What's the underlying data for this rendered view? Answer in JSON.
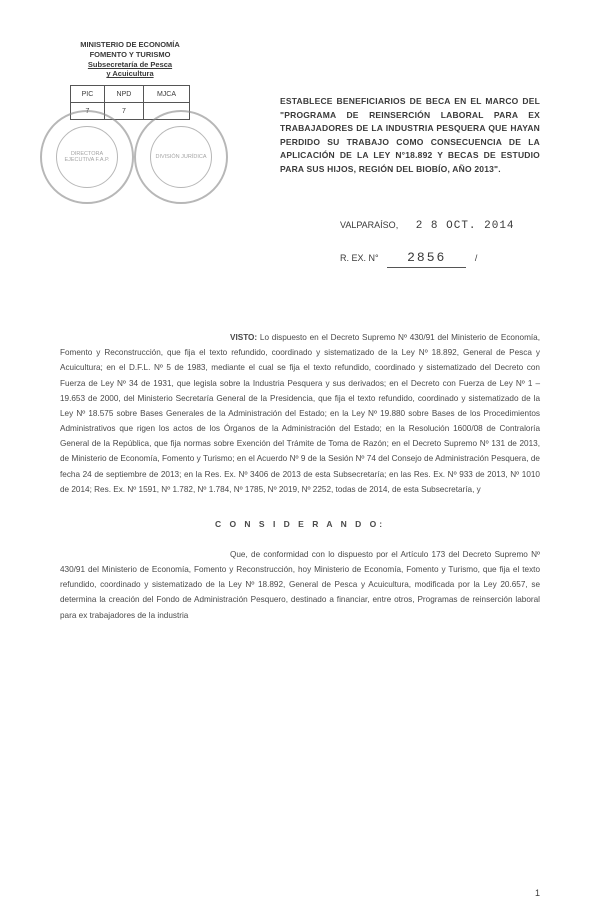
{
  "header": {
    "ministry_line1": "MINISTERIO DE ECONOMÍA",
    "ministry_line2": "FOMENTO Y TURISMO",
    "ministry_line3": "Subsecretaría de Pesca",
    "ministry_line4": "y Acuicultura",
    "table_cells": {
      "r1c1": "PIC",
      "r1c2": "NPD",
      "r1c3": "MJCA",
      "r2c1": "7",
      "r2c2": "7",
      "r2c3": ""
    }
  },
  "stamps": {
    "stamp1": "DIRECTORA EJECUTIVA F.A.P.",
    "stamp2": "DIVISIÓN JURÍDICA"
  },
  "title": "ESTABLECE BENEFICIARIOS DE BECA EN EL MARCO DEL \"PROGRAMA DE REINSERCIÓN LABORAL PARA EX TRABAJADORES DE LA INDUSTRIA PESQUERA QUE HAYAN PERDIDO SU TRABAJO COMO CONSECUENCIA DE LA APLICACIÓN DE LA LEY N°18.892 Y BECAS DE ESTUDIO PARA SUS HIJOS, REGIÓN DEL BIOBÍO, AÑO 2013\".",
  "placedate": {
    "place": "VALPARAÍSO,",
    "date": "2 8 OCT. 2014"
  },
  "resline": {
    "label": "R. EX. N°",
    "number": "2856",
    "suffix": "/"
  },
  "visto": {
    "lead": "VISTO:",
    "text": "Lo dispuesto en el Decreto Supremo Nº 430/91 del Ministerio de Economía, Fomento y Reconstrucción, que fija el texto refundido, coordinado y sistematizado de la Ley Nº 18.892, General de Pesca y Acuicultura; en el D.F.L. Nº 5 de 1983, mediante el cual se fija el texto refundido, coordinado y sistematizado del Decreto con Fuerza de Ley Nº 34 de 1931, que legisla sobre la Industria Pesquera y sus derivados; en el Decreto con Fuerza de Ley Nº 1 – 19.653 de 2000, del Ministerio Secretaría General de la Presidencia, que fija el texto refundido, coordinado y sistematizado de la Ley Nº 18.575 sobre Bases Generales de la Administración del Estado; en la Ley Nº 19.880 sobre Bases de los Procedimientos Administrativos que rigen los actos de los Órganos de la Administración del Estado; en la Resolución 1600/08 de Contraloría General de la República, que fija normas sobre Exención del Trámite de Toma de Razón; en el Decreto Supremo Nº 131 de 2013, de Ministerio de Economía, Fomento y Turismo; en el Acuerdo Nº 9 de la Sesión Nº 74 del Consejo de Administración Pesquera, de fecha 24 de septiembre de 2013; en la Res. Ex. Nº 3406 de 2013 de esta Subsecretaría; en las Res. Ex. Nº 933 de 2013, Nº 1010 de 2014; Res. Ex. Nº 1591, Nº 1.782, Nº 1.784, Nº 1785, Nº 2019, Nº 2252, todas de 2014, de esta Subsecretaría, y"
  },
  "considerando": {
    "heading": "C O N S I D E R A N D O:",
    "lead": "Que,",
    "text": "de conformidad con lo dispuesto por el Artículo 173 del Decreto Supremo Nº 430/91 del Ministerio de Economía, Fomento y Reconstrucción, hoy Ministerio de Economía, Fomento y Turismo, que fija el texto refundido, coordinado y sistematizado de la Ley Nº 18.892, General de Pesca y Acuicultura, modificada por la Ley 20.657, se determina la creación del Fondo de Administración Pesquero, destinado a financiar, entre otros, Programas de reinserción laboral para ex trabajadores de la industria"
  },
  "page": "1"
}
